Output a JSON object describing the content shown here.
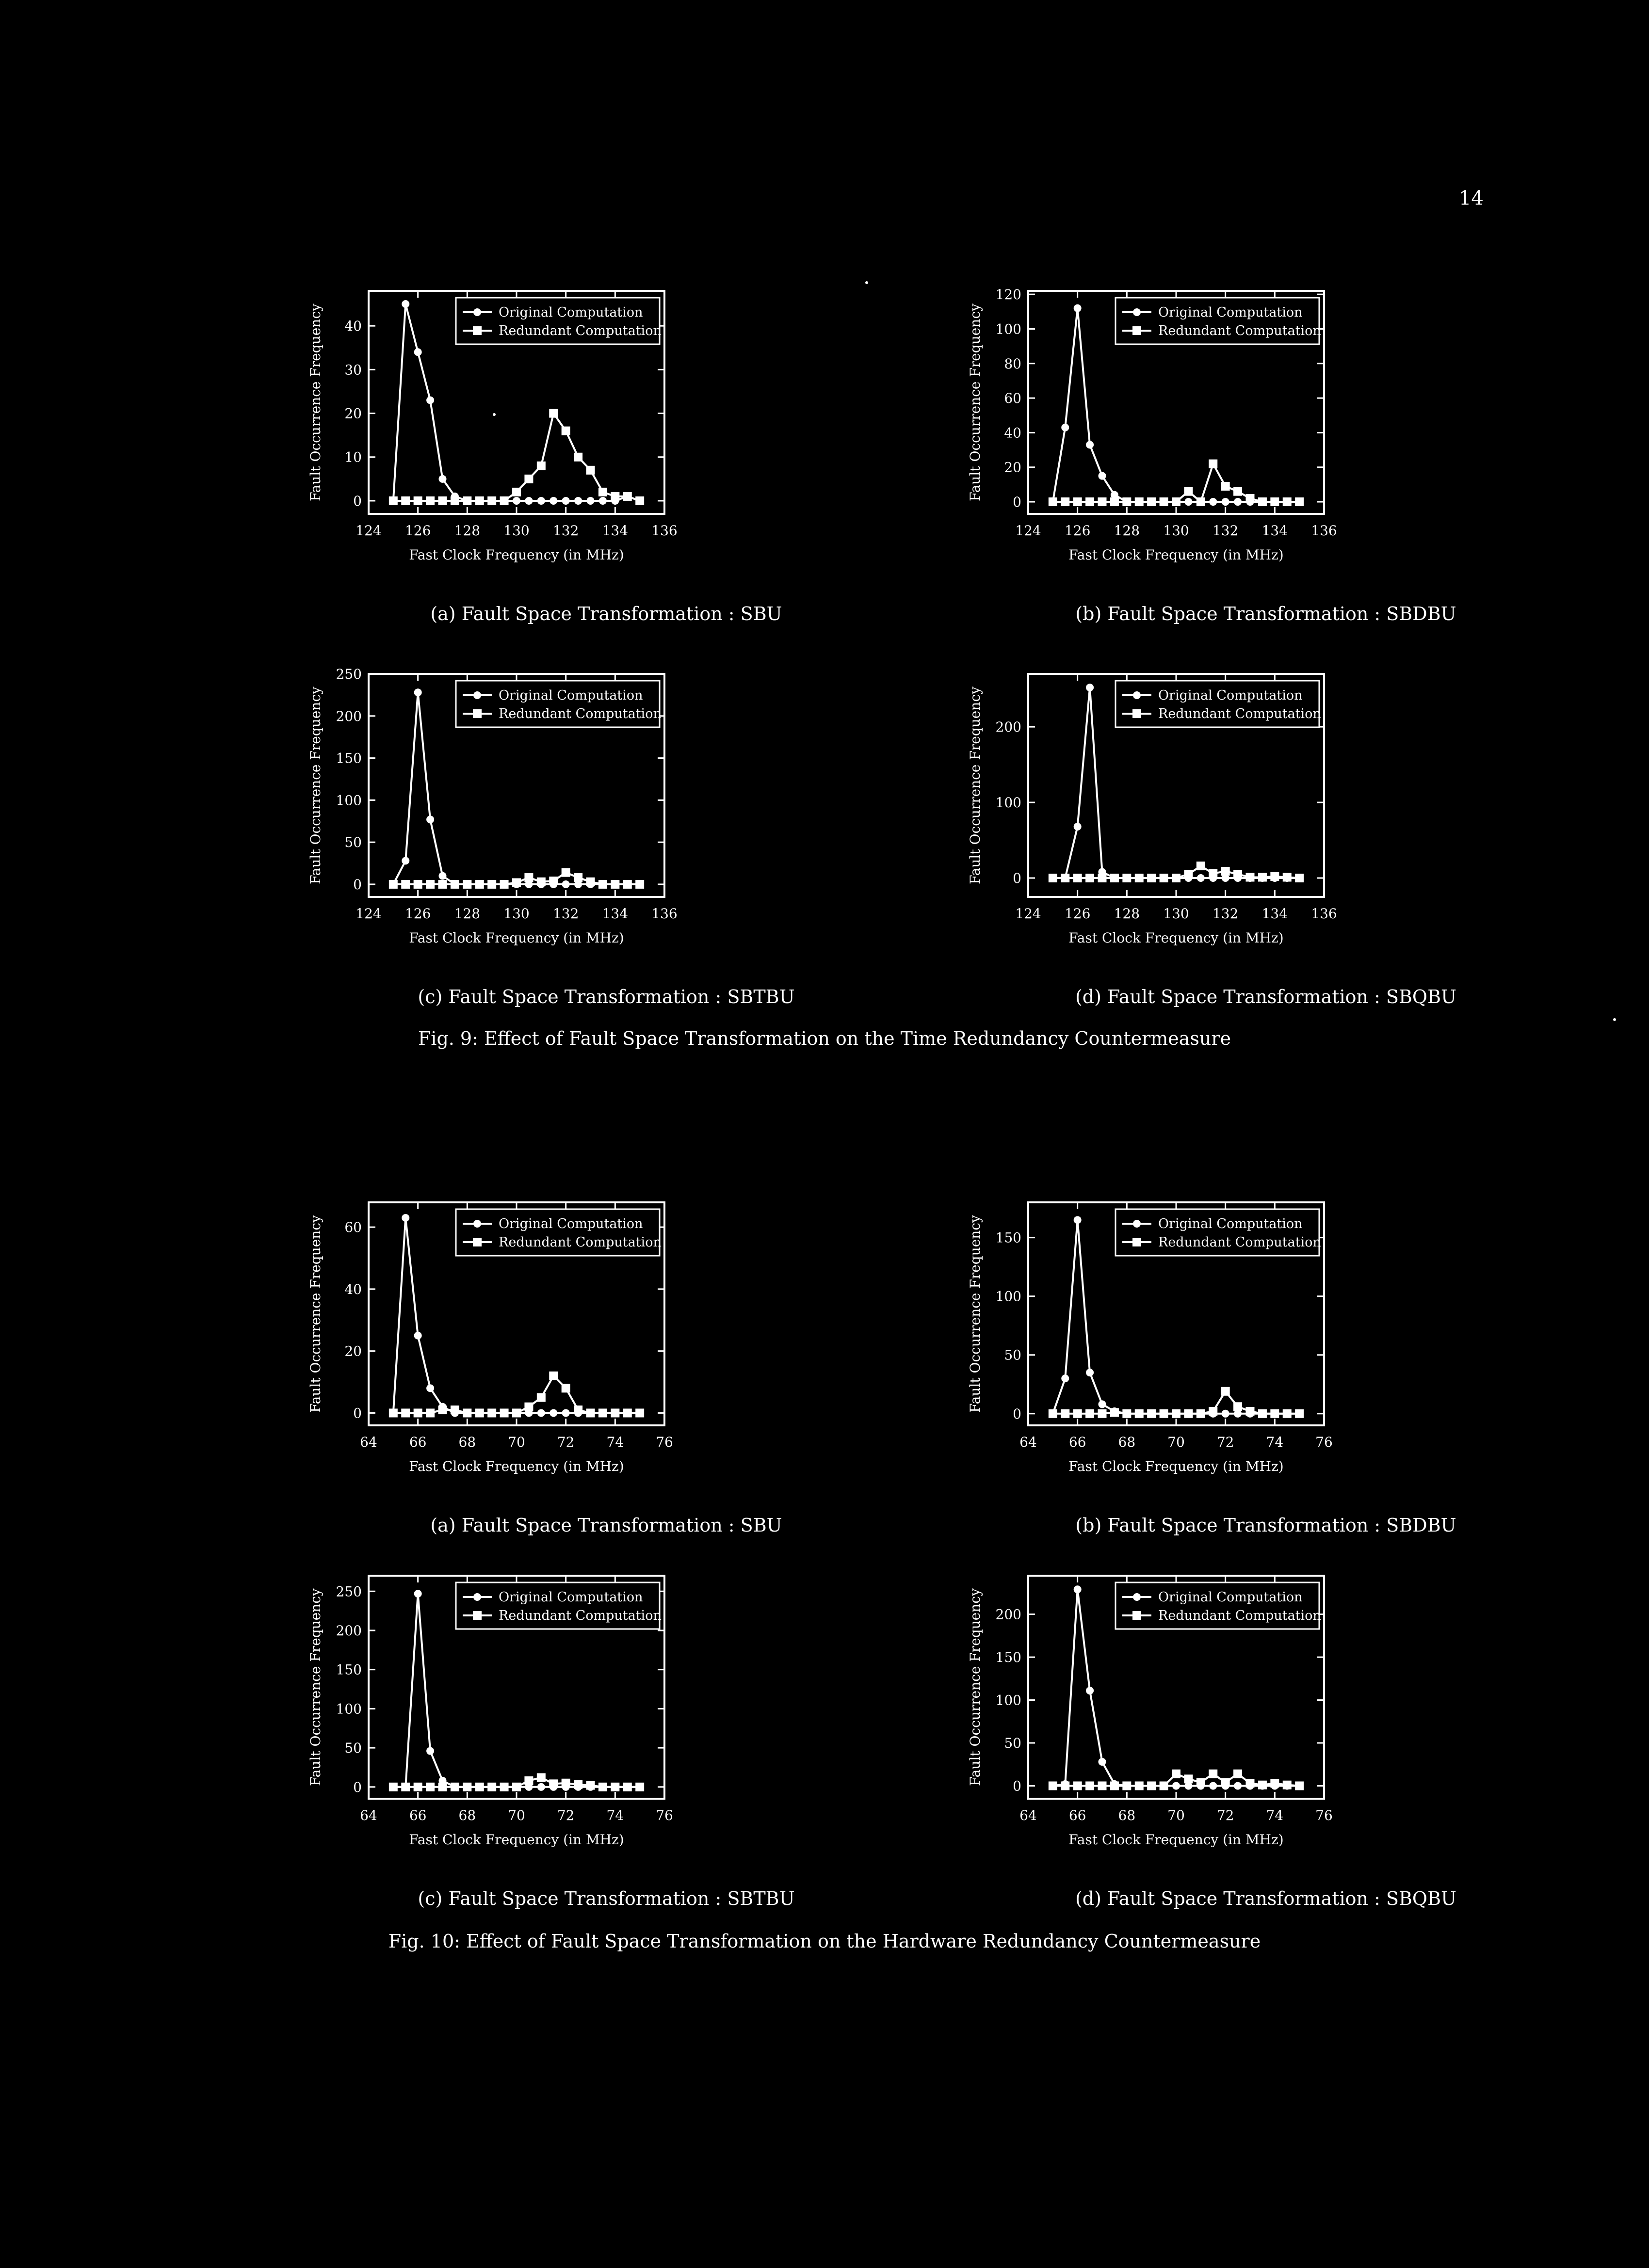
{
  "page_number": "14",
  "figures": [
    {
      "caption": "Fig. 9: Effect of Fault Space Transformation on the Time Redundancy Countermeasure",
      "panels": [
        "fig9a",
        "fig9b",
        "fig9c",
        "fig9d"
      ]
    },
    {
      "caption": "Fig. 10: Effect of Fault Space Transformation on the Hardware Redundancy Countermeasure",
      "panels": [
        "fig10a",
        "fig10b",
        "fig10c",
        "fig10d"
      ]
    }
  ],
  "chart_data": [
    {
      "id": "fig9a",
      "type": "line",
      "caption": "(a) Fault Space Transformation : SBU",
      "xlabel": "Fast Clock Frequency (in MHz)",
      "ylabel": "Fault Occurrence Frequency",
      "xlim": [
        124,
        136
      ],
      "ylim": [
        -3,
        48
      ],
      "xticks": [
        124,
        126,
        128,
        130,
        132,
        134,
        136
      ],
      "yticks": [
        0,
        10,
        20,
        30,
        40
      ],
      "legend_position": "top-right",
      "x": [
        125,
        125.5,
        126,
        126.5,
        127,
        127.5,
        128,
        128.5,
        129,
        129.5,
        130,
        130.5,
        131,
        131.5,
        132,
        132.5,
        133,
        133.5,
        134,
        134.5,
        135
      ],
      "series": [
        {
          "name": "Original Computation",
          "marker": "circle",
          "values": [
            0,
            45,
            34,
            23,
            5,
            1,
            0,
            0,
            0,
            0,
            0,
            0,
            0,
            0,
            0,
            0,
            0,
            0,
            0,
            1,
            0
          ]
        },
        {
          "name": "Redundant Computation",
          "marker": "square",
          "values": [
            0,
            0,
            0,
            0,
            0,
            0,
            0,
            0,
            0,
            0,
            2,
            5,
            8,
            20,
            16,
            10,
            7,
            2,
            1,
            1,
            0
          ]
        }
      ]
    },
    {
      "id": "fig9b",
      "type": "line",
      "caption": "(b) Fault Space Transformation : SBDBU",
      "xlabel": "Fast Clock Frequency (in MHz)",
      "ylabel": "Fault Occurrence Frequency",
      "xlim": [
        124,
        136
      ],
      "ylim": [
        -7,
        122
      ],
      "xticks": [
        124,
        126,
        128,
        130,
        132,
        134,
        136
      ],
      "yticks": [
        0,
        20,
        40,
        60,
        80,
        100,
        120
      ],
      "legend_position": "top-right",
      "x": [
        125,
        125.5,
        126,
        126.5,
        127,
        127.5,
        128,
        128.5,
        129,
        129.5,
        130,
        130.5,
        131,
        131.5,
        132,
        132.5,
        133,
        133.5,
        134,
        134.5,
        135
      ],
      "series": [
        {
          "name": "Original Computation",
          "marker": "circle",
          "values": [
            0,
            43,
            112,
            33,
            15,
            4,
            0,
            0,
            0,
            0,
            0,
            0,
            0,
            0,
            0,
            0,
            0,
            0,
            0,
            0,
            0
          ]
        },
        {
          "name": "Redundant Computation",
          "marker": "square",
          "values": [
            0,
            0,
            0,
            0,
            0,
            0,
            0,
            0,
            0,
            0,
            0,
            6,
            0,
            22,
            9,
            6,
            2,
            0,
            0,
            0,
            0
          ]
        }
      ]
    },
    {
      "id": "fig9c",
      "type": "line",
      "caption": "(c) Fault Space Transformation : SBTBU",
      "xlabel": "Fast Clock Frequency (in MHz)",
      "ylabel": "Fault Occurrence Frequency",
      "xlim": [
        124,
        136
      ],
      "ylim": [
        -15,
        250
      ],
      "xticks": [
        124,
        126,
        128,
        130,
        132,
        134,
        136
      ],
      "yticks": [
        0,
        50,
        100,
        150,
        200,
        250
      ],
      "legend_position": "top-right",
      "x": [
        125,
        125.5,
        126,
        126.5,
        127,
        127.5,
        128,
        128.5,
        129,
        129.5,
        130,
        130.5,
        131,
        131.5,
        132,
        132.5,
        133,
        133.5,
        134,
        134.5,
        135
      ],
      "series": [
        {
          "name": "Original Computation",
          "marker": "circle",
          "values": [
            0,
            28,
            228,
            77,
            10,
            0,
            0,
            0,
            0,
            0,
            0,
            0,
            0,
            0,
            0,
            0,
            0,
            0,
            0,
            0,
            0
          ]
        },
        {
          "name": "Redundant Computation",
          "marker": "square",
          "values": [
            0,
            0,
            0,
            0,
            0,
            0,
            0,
            0,
            0,
            0,
            2,
            8,
            3,
            4,
            14,
            8,
            3,
            0,
            0,
            0,
            0
          ]
        }
      ]
    },
    {
      "id": "fig9d",
      "type": "line",
      "caption": "(d) Fault Space Transformation : SBQBU",
      "xlabel": "Fast Clock Frequency (in MHz)",
      "ylabel": "Fault Occurrence Frequency",
      "xlim": [
        124,
        136
      ],
      "ylim": [
        -25,
        270
      ],
      "xticks": [
        124,
        126,
        128,
        130,
        132,
        134,
        136
      ],
      "yticks": [
        0,
        100,
        200
      ],
      "legend_position": "top-right",
      "x": [
        125,
        125.5,
        126,
        126.5,
        127,
        127.5,
        128,
        128.5,
        129,
        129.5,
        130,
        130.5,
        131,
        131.5,
        132,
        132.5,
        133,
        133.5,
        134,
        134.5,
        135
      ],
      "series": [
        {
          "name": "Original Computation",
          "marker": "circle",
          "values": [
            0,
            0,
            68,
            252,
            8,
            0,
            0,
            0,
            0,
            0,
            0,
            0,
            0,
            0,
            0,
            0,
            0,
            0,
            0,
            0,
            0
          ]
        },
        {
          "name": "Redundant Computation",
          "marker": "square",
          "values": [
            0,
            0,
            0,
            0,
            0,
            0,
            0,
            0,
            0,
            0,
            0,
            5,
            16,
            6,
            9,
            5,
            1,
            1,
            2,
            1,
            0
          ]
        }
      ]
    },
    {
      "id": "fig10a",
      "type": "line",
      "caption": "(a) Fault Space Transformation : SBU",
      "xlabel": "Fast Clock Frequency (in MHz)",
      "ylabel": "Fault Occurrence Frequency",
      "xlim": [
        64,
        76
      ],
      "ylim": [
        -4,
        68
      ],
      "xticks": [
        64,
        66,
        68,
        70,
        72,
        74,
        76
      ],
      "yticks": [
        0,
        20,
        40,
        60
      ],
      "legend_position": "top-right",
      "x": [
        65,
        65.5,
        66,
        66.5,
        67,
        67.5,
        68,
        68.5,
        69,
        69.5,
        70,
        70.5,
        71,
        71.5,
        72,
        72.5,
        73,
        73.5,
        74,
        74.5,
        75
      ],
      "series": [
        {
          "name": "Original Computation",
          "marker": "circle",
          "values": [
            0,
            63,
            25,
            8,
            2,
            0,
            0,
            0,
            0,
            0,
            0,
            0,
            0,
            0,
            0,
            0,
            0,
            0,
            0,
            0,
            0
          ]
        },
        {
          "name": "Redundant Computation",
          "marker": "square",
          "values": [
            0,
            0,
            0,
            0,
            1,
            1,
            0,
            0,
            0,
            0,
            0,
            2,
            5,
            12,
            8,
            1,
            0,
            0,
            0,
            0,
            0
          ]
        }
      ]
    },
    {
      "id": "fig10b",
      "type": "line",
      "caption": "(b) Fault Space Transformation : SBDBU",
      "xlabel": "Fast Clock Frequency (in MHz)",
      "ylabel": "Fault Occurrence Frequency",
      "xlim": [
        64,
        76
      ],
      "ylim": [
        -10,
        180
      ],
      "xticks": [
        64,
        66,
        68,
        70,
        72,
        74,
        76
      ],
      "yticks": [
        0,
        50,
        100,
        150
      ],
      "legend_position": "top-right",
      "x": [
        65,
        65.5,
        66,
        66.5,
        67,
        67.5,
        68,
        68.5,
        69,
        69.5,
        70,
        70.5,
        71,
        71.5,
        72,
        72.5,
        73,
        73.5,
        74,
        74.5,
        75
      ],
      "series": [
        {
          "name": "Original Computation",
          "marker": "circle",
          "values": [
            0,
            30,
            165,
            35,
            8,
            2,
            0,
            0,
            0,
            0,
            0,
            0,
            0,
            0,
            0,
            0,
            0,
            0,
            0,
            0,
            0
          ]
        },
        {
          "name": "Redundant Computation",
          "marker": "square",
          "values": [
            0,
            0,
            0,
            0,
            0,
            1,
            0,
            0,
            0,
            0,
            0,
            0,
            0,
            2,
            19,
            6,
            2,
            0,
            0,
            0,
            0
          ]
        }
      ]
    },
    {
      "id": "fig10c",
      "type": "line",
      "caption": "(c) Fault Space Transformation : SBTBU",
      "xlabel": "Fast Clock Frequency (in MHz)",
      "ylabel": "Fault Occurrence Frequency",
      "xlim": [
        64,
        76
      ],
      "ylim": [
        -15,
        270
      ],
      "xticks": [
        64,
        66,
        68,
        70,
        72,
        74,
        76
      ],
      "yticks": [
        0,
        50,
        100,
        150,
        200,
        250
      ],
      "legend_position": "top-right",
      "x": [
        65,
        65.5,
        66,
        66.5,
        67,
        67.5,
        68,
        68.5,
        69,
        69.5,
        70,
        70.5,
        71,
        71.5,
        72,
        72.5,
        73,
        73.5,
        74,
        74.5,
        75
      ],
      "series": [
        {
          "name": "Original Computation",
          "marker": "circle",
          "values": [
            0,
            0,
            247,
            46,
            8,
            0,
            0,
            0,
            0,
            0,
            0,
            0,
            0,
            0,
            0,
            0,
            0,
            0,
            0,
            0,
            0
          ]
        },
        {
          "name": "Redundant Computation",
          "marker": "square",
          "values": [
            0,
            0,
            0,
            0,
            0,
            0,
            0,
            0,
            0,
            0,
            0,
            8,
            12,
            4,
            5,
            3,
            2,
            0,
            0,
            0,
            0
          ]
        }
      ]
    },
    {
      "id": "fig10d",
      "type": "line",
      "caption": "(d) Fault Space Transformation : SBQBU",
      "xlabel": "Fast Clock Frequency (in MHz)",
      "ylabel": "Fault Occurrence Frequency",
      "xlim": [
        64,
        76
      ],
      "ylim": [
        -15,
        245
      ],
      "xticks": [
        64,
        66,
        68,
        70,
        72,
        74,
        76
      ],
      "yticks": [
        0,
        50,
        100,
        150,
        200
      ],
      "legend_position": "top-right",
      "x": [
        65,
        65.5,
        66,
        66.5,
        67,
        67.5,
        68,
        68.5,
        69,
        69.5,
        70,
        70.5,
        71,
        71.5,
        72,
        72.5,
        73,
        73.5,
        74,
        74.5,
        75
      ],
      "series": [
        {
          "name": "Original Computation",
          "marker": "circle",
          "values": [
            0,
            2,
            229,
            111,
            28,
            2,
            0,
            0,
            0,
            0,
            0,
            0,
            0,
            0,
            0,
            0,
            0,
            0,
            0,
            0,
            0
          ]
        },
        {
          "name": "Redundant Computation",
          "marker": "square",
          "values": [
            0,
            0,
            0,
            0,
            0,
            0,
            0,
            0,
            0,
            0,
            14,
            8,
            4,
            14,
            4,
            14,
            3,
            1,
            3,
            1,
            0
          ]
        }
      ]
    }
  ]
}
